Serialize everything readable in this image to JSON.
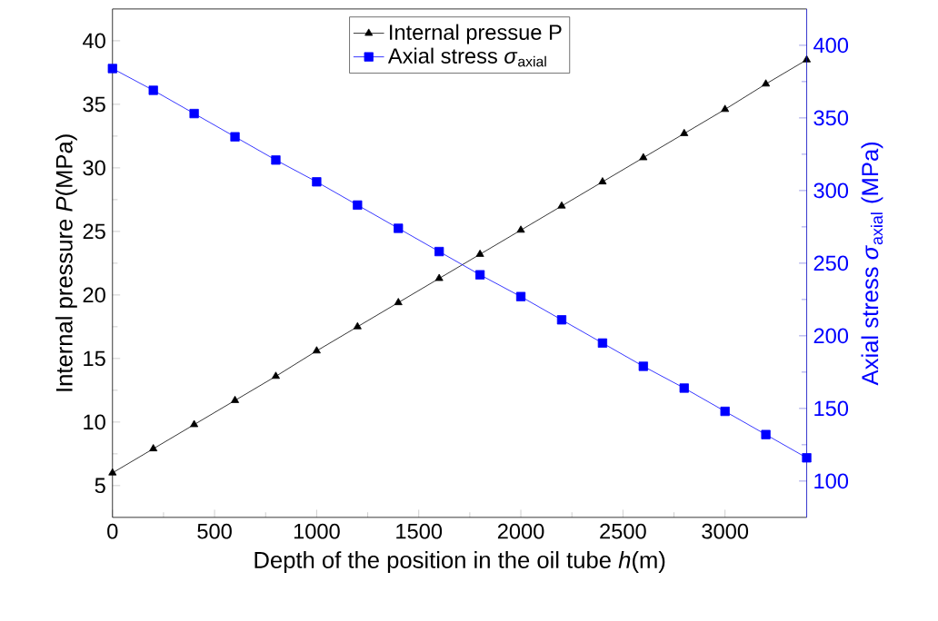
{
  "chart_data": {
    "type": "line",
    "xlabel": "Depth of the position in the oil tube *h*(m)",
    "ylabel": "Internal pressure *P*(MPa)",
    "y2label": "Axial stress *σ*$_{axial}$ (MPa)",
    "x": [
      0,
      200,
      400,
      600,
      800,
      1000,
      1200,
      1400,
      1600,
      1800,
      2000,
      2200,
      2400,
      2600,
      2800,
      3000,
      3200,
      3400
    ],
    "series": [
      {
        "name": "Internal pressue P",
        "color": "#000000",
        "marker": "triangle",
        "values": [
          6.0,
          7.9,
          9.8,
          11.7,
          13.6,
          15.6,
          17.5,
          19.4,
          21.3,
          23.2,
          25.1,
          27.0,
          28.9,
          30.8,
          32.7,
          34.6,
          36.6,
          38.5
        ]
      },
      {
        "name": "Axial stress *σ*$_{axial}$",
        "color": "#0000ff",
        "marker": "square",
        "axis": "y2",
        "values": [
          384,
          369,
          353,
          337,
          321,
          306,
          290,
          274,
          258,
          242,
          227,
          211,
          195,
          179,
          164,
          148,
          132,
          116
        ]
      }
    ],
    "xlim": [
      0,
      3400
    ],
    "xticks": [
      0,
      500,
      1000,
      1500,
      2000,
      2500,
      3000
    ],
    "ylim": [
      2.5,
      42.5
    ],
    "yticks": [
      5,
      10,
      15,
      20,
      25,
      30,
      35,
      40
    ],
    "y2lim": [
      75,
      425
    ],
    "y2ticks": [
      100,
      150,
      200,
      250,
      300,
      350,
      400
    ],
    "grid": false,
    "legend": "top",
    "line_style": "solid"
  }
}
